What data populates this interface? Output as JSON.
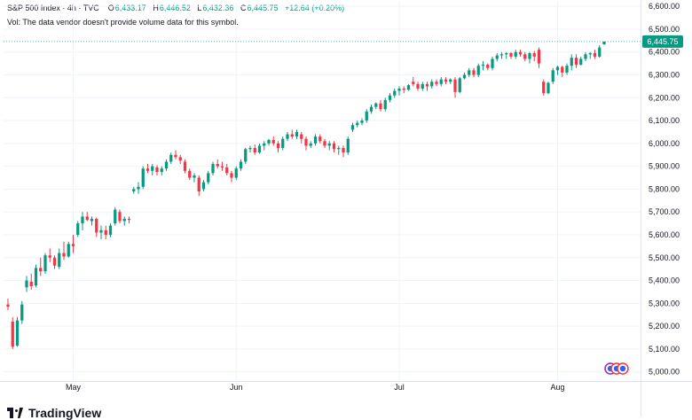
{
  "legend": {
    "symbol": "S&P 500 Index · 4h · TVC",
    "open_key": "O",
    "open": "6,433.17",
    "high_key": "H",
    "high": "6,446.52",
    "low_key": "L",
    "low": "6,432.36",
    "close_key": "C",
    "close": "6,445.75",
    "change": "+12.64 (+0.20%)",
    "volume_note": "Vol: The data vendor doesn't provide volume data for this symbol."
  },
  "brand": {
    "name": "TradingView"
  },
  "colors": {
    "up": "#089981",
    "down": "#f23645",
    "grid": "#f0f3fa",
    "price_line": "#089981"
  },
  "chart_data": {
    "type": "candlestick",
    "y_axis": {
      "position": "right",
      "ylim": [
        4960,
        6620
      ],
      "ticks": [
        5000,
        5100,
        5200,
        5300,
        5400,
        5500,
        5600,
        5700,
        5800,
        5900,
        6000,
        6100,
        6200,
        6300,
        6400,
        6500,
        6600
      ],
      "tick_labels": [
        "5,000.00",
        "5,100.00",
        "5,200.00",
        "5,300.00",
        "5,400.00",
        "5,500.00",
        "5,600.00",
        "5,700.00",
        "5,800.00",
        "5,900.00",
        "6,000.00",
        "6,100.00",
        "6,200.00",
        "6,300.00",
        "6,400.00",
        "6,500.00",
        "6,600.00"
      ]
    },
    "x_axis": {
      "labels": [
        {
          "label": "May",
          "index": 14
        },
        {
          "label": "Jun",
          "index": 49
        },
        {
          "label": "Jul",
          "index": 84
        },
        {
          "label": "Aug",
          "index": 118
        }
      ]
    },
    "last_price": {
      "value": 6445.75,
      "label": "6,445.75"
    },
    "candles": [
      [
        5295,
        5320,
        5270,
        5285
      ],
      [
        5220,
        5240,
        5100,
        5110
      ],
      [
        5115,
        5240,
        5110,
        5225
      ],
      [
        5225,
        5310,
        5210,
        5295
      ],
      [
        5370,
        5420,
        5350,
        5400
      ],
      [
        5395,
        5430,
        5360,
        5375
      ],
      [
        5378,
        5470,
        5370,
        5455
      ],
      [
        5455,
        5500,
        5420,
        5440
      ],
      [
        5440,
        5520,
        5430,
        5510
      ],
      [
        5510,
        5540,
        5480,
        5500
      ],
      [
        5500,
        5510,
        5450,
        5465
      ],
      [
        5460,
        5540,
        5450,
        5520
      ],
      [
        5520,
        5570,
        5490,
        5505
      ],
      [
        5505,
        5570,
        5500,
        5560
      ],
      [
        5560,
        5600,
        5520,
        5550
      ],
      [
        5600,
        5660,
        5590,
        5650
      ],
      [
        5650,
        5700,
        5620,
        5680
      ],
      [
        5680,
        5700,
        5660,
        5665
      ],
      [
        5660,
        5680,
        5640,
        5670
      ],
      [
        5670,
        5675,
        5590,
        5610
      ],
      [
        5610,
        5640,
        5580,
        5620
      ],
      [
        5620,
        5640,
        5580,
        5600
      ],
      [
        5600,
        5650,
        5590,
        5640
      ],
      [
        5650,
        5720,
        5640,
        5710
      ],
      [
        5700,
        5710,
        5650,
        5660
      ],
      [
        5660,
        5680,
        5640,
        5670
      ],
      [
        5670,
        5680,
        5650,
        5665
      ],
      [
        5790,
        5810,
        5780,
        5800
      ],
      [
        5800,
        5830,
        5780,
        5810
      ],
      [
        5810,
        5900,
        5800,
        5890
      ],
      [
        5890,
        5910,
        5870,
        5880
      ],
      [
        5880,
        5910,
        5860,
        5900
      ],
      [
        5895,
        5905,
        5860,
        5875
      ],
      [
        5875,
        5900,
        5860,
        5890
      ],
      [
        5890,
        5930,
        5880,
        5920
      ],
      [
        5920,
        5960,
        5910,
        5950
      ],
      [
        5950,
        5970,
        5930,
        5940
      ],
      [
        5940,
        5950,
        5910,
        5925
      ],
      [
        5920,
        5930,
        5870,
        5880
      ],
      [
        5880,
        5890,
        5840,
        5850
      ],
      [
        5850,
        5870,
        5830,
        5860
      ],
      [
        5850,
        5860,
        5770,
        5790
      ],
      [
        5800,
        5840,
        5790,
        5830
      ],
      [
        5830,
        5880,
        5820,
        5870
      ],
      [
        5870,
        5920,
        5860,
        5910
      ],
      [
        5910,
        5930,
        5890,
        5900
      ],
      [
        5900,
        5920,
        5880,
        5895
      ],
      [
        5895,
        5910,
        5860,
        5870
      ],
      [
        5870,
        5880,
        5830,
        5850
      ],
      [
        5850,
        5900,
        5840,
        5890
      ],
      [
        5890,
        5930,
        5880,
        5920
      ],
      [
        5920,
        5980,
        5910,
        5975
      ],
      [
        5975,
        5990,
        5960,
        5980
      ],
      [
        5980,
        5995,
        5950,
        5960
      ],
      [
        5960,
        6000,
        5955,
        5990
      ],
      [
        5990,
        6010,
        5970,
        6000
      ],
      [
        6000,
        6020,
        5990,
        6015
      ],
      [
        6015,
        6030,
        5990,
        6000
      ],
      [
        6000,
        6010,
        5960,
        5980
      ],
      [
        5980,
        6030,
        5970,
        6020
      ],
      [
        6020,
        6050,
        6010,
        6040
      ],
      [
        6040,
        6060,
        6020,
        6030
      ],
      [
        6030,
        6060,
        6020,
        6050
      ],
      [
        6040,
        6050,
        6000,
        6020
      ],
      [
        6020,
        6030,
        5970,
        5990
      ],
      [
        5990,
        6010,
        5980,
        6000
      ],
      [
        6000,
        6040,
        5990,
        6030
      ],
      [
        6030,
        6040,
        6000,
        6010
      ],
      [
        6010,
        6020,
        5980,
        5990
      ],
      [
        5990,
        6010,
        5970,
        6000
      ],
      [
        6000,
        6010,
        5960,
        5975
      ],
      [
        5975,
        5990,
        5950,
        5980
      ],
      [
        5980,
        5990,
        5940,
        5960
      ],
      [
        5960,
        6030,
        5950,
        6020
      ],
      [
        6060,
        6090,
        6050,
        6080
      ],
      [
        6080,
        6100,
        6070,
        6090
      ],
      [
        6090,
        6110,
        6080,
        6100
      ],
      [
        6100,
        6150,
        6090,
        6140
      ],
      [
        6140,
        6170,
        6130,
        6160
      ],
      [
        6160,
        6180,
        6150,
        6175
      ],
      [
        6175,
        6190,
        6140,
        6150
      ],
      [
        6150,
        6200,
        6140,
        6190
      ],
      [
        6190,
        6220,
        6180,
        6210
      ],
      [
        6210,
        6240,
        6200,
        6230
      ],
      [
        6230,
        6250,
        6210,
        6240
      ],
      [
        6240,
        6250,
        6220,
        6235
      ],
      [
        6235,
        6260,
        6230,
        6255
      ],
      [
        6270,
        6290,
        6250,
        6260
      ],
      [
        6260,
        6270,
        6230,
        6240
      ],
      [
        6240,
        6270,
        6230,
        6260
      ],
      [
        6260,
        6270,
        6230,
        6250
      ],
      [
        6250,
        6280,
        6240,
        6270
      ],
      [
        6270,
        6280,
        6250,
        6260
      ],
      [
        6260,
        6290,
        6250,
        6280
      ],
      [
        6280,
        6290,
        6260,
        6270
      ],
      [
        6270,
        6285,
        6260,
        6280
      ],
      [
        6280,
        6290,
        6200,
        6225
      ],
      [
        6225,
        6290,
        6220,
        6285
      ],
      [
        6285,
        6310,
        6280,
        6300
      ],
      [
        6300,
        6330,
        6290,
        6320
      ],
      [
        6320,
        6330,
        6290,
        6300
      ],
      [
        6300,
        6350,
        6290,
        6340
      ],
      [
        6340,
        6360,
        6320,
        6345
      ],
      [
        6345,
        6350,
        6320,
        6330
      ],
      [
        6330,
        6380,
        6320,
        6370
      ],
      [
        6370,
        6395,
        6360,
        6385
      ],
      [
        6385,
        6400,
        6370,
        6390
      ],
      [
        6390,
        6400,
        6370,
        6395
      ],
      [
        6395,
        6400,
        6370,
        6380
      ],
      [
        6380,
        6410,
        6370,
        6400
      ],
      [
        6400,
        6410,
        6380,
        6390
      ],
      [
        6390,
        6400,
        6360,
        6370
      ],
      [
        6370,
        6400,
        6350,
        6395
      ],
      [
        6395,
        6405,
        6360,
        6380
      ],
      [
        6410,
        6420,
        6330,
        6350
      ],
      [
        6270,
        6280,
        6210,
        6220
      ],
      [
        6220,
        6270,
        6215,
        6265
      ],
      [
        6270,
        6330,
        6260,
        6320
      ],
      [
        6320,
        6340,
        6300,
        6335
      ],
      [
        6335,
        6340,
        6290,
        6310
      ],
      [
        6310,
        6350,
        6300,
        6340
      ],
      [
        6340,
        6390,
        6320,
        6375
      ],
      [
        6375,
        6390,
        6330,
        6345
      ],
      [
        6345,
        6380,
        6340,
        6370
      ],
      [
        6370,
        6400,
        6360,
        6390
      ],
      [
        6390,
        6400,
        6370,
        6395
      ],
      [
        6395,
        6410,
        6370,
        6380
      ],
      [
        6380,
        6430,
        6375,
        6420
      ],
      [
        6433.17,
        6446.52,
        6432.36,
        6445.75
      ]
    ]
  }
}
